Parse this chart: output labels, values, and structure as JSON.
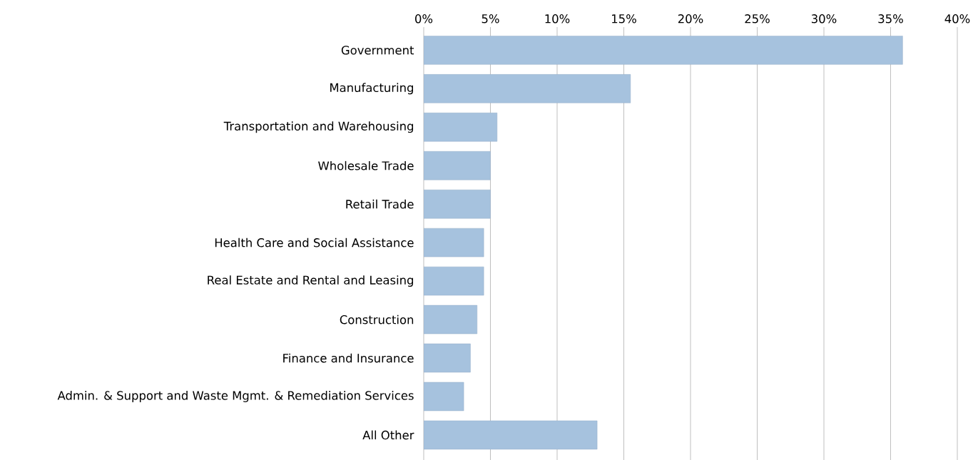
{
  "chart_data": {
    "type": "bar",
    "orientation": "horizontal",
    "categories": [
      "Government",
      "Manufacturing",
      "Transportation and Warehousing",
      "Wholesale Trade",
      "Retail Trade",
      "Health Care and Social Assistance",
      "Real Estate and Rental and Leasing",
      "Construction",
      "Finance and Insurance",
      "Admin. & Support and Waste Mgmt. & Remediation Services",
      "All Other"
    ],
    "values": [
      35.9,
      15.5,
      5.5,
      5.0,
      5.0,
      4.5,
      4.5,
      4.0,
      3.5,
      3.0,
      13.0
    ],
    "color": "#a6c2de",
    "xlim": [
      0,
      40
    ],
    "xticks": [
      {
        "value": 0,
        "label": "0%"
      },
      {
        "value": 5,
        "label": "5%"
      },
      {
        "value": 10,
        "label": "10%"
      },
      {
        "value": 15,
        "label": "15%"
      },
      {
        "value": 20,
        "label": "20%"
      },
      {
        "value": 25,
        "label": "25%"
      },
      {
        "value": 30,
        "label": "30%"
      },
      {
        "value": 35,
        "label": "35%"
      },
      {
        "value": 40,
        "label": "40%"
      }
    ],
    "grid": "x"
  }
}
